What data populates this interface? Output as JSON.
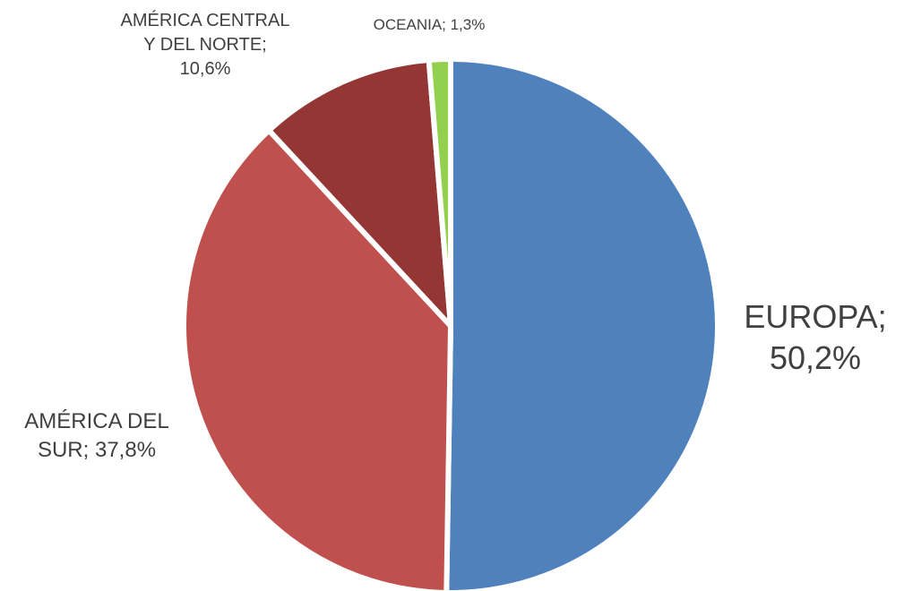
{
  "chart_data": {
    "type": "pie",
    "title": "",
    "slices": [
      {
        "name": "EUROPA",
        "value": 50.2,
        "label_lines": [
          "EUROPA;",
          "50,2%"
        ],
        "color": "#4F81BD"
      },
      {
        "name": "AMÉRICA DEL SUR",
        "value": 37.8,
        "label_lines": [
          "AMÉRICA DEL",
          "SUR; 37,8%"
        ],
        "color": "#C0504D"
      },
      {
        "name": "AMÉRICA CENTRAL Y DEL NORTE",
        "value": 10.6,
        "label_lines": [
          "AMÉRICA CENTRAL",
          "Y DEL NORTE;",
          "10,6%"
        ],
        "color": "#943634"
      },
      {
        "name": "OCEANIA",
        "value": 1.3,
        "label_lines": [
          "OCEANIA; 1,3%"
        ],
        "color": "#92D050"
      }
    ],
    "legend": "none"
  }
}
